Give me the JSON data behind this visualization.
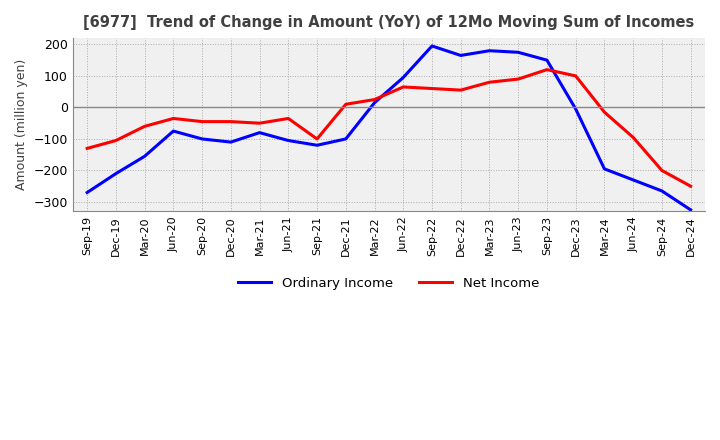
{
  "title": "[6977]  Trend of Change in Amount (YoY) of 12Mo Moving Sum of Incomes",
  "ylabel": "Amount (million yen)",
  "ylim": [
    -330,
    220
  ],
  "yticks": [
    -300,
    -200,
    -100,
    0,
    100,
    200
  ],
  "background_color": "#ffffff",
  "plot_bg_color": "#f0f0f0",
  "title_color": "#404040",
  "x_labels": [
    "Sep-19",
    "Dec-19",
    "Mar-20",
    "Jun-20",
    "Sep-20",
    "Dec-20",
    "Mar-21",
    "Jun-21",
    "Sep-21",
    "Dec-21",
    "Mar-22",
    "Jun-22",
    "Sep-22",
    "Dec-22",
    "Mar-23",
    "Jun-23",
    "Sep-23",
    "Dec-23",
    "Mar-24",
    "Jun-24",
    "Sep-24",
    "Dec-24"
  ],
  "ordinary_income": [
    -270,
    -210,
    -155,
    -75,
    -100,
    -110,
    -80,
    -105,
    -120,
    -100,
    15,
    95,
    195,
    165,
    180,
    175,
    150,
    -5,
    -195,
    -230,
    -265,
    -325
  ],
  "net_income": [
    -130,
    -105,
    -60,
    -35,
    -45,
    -45,
    -50,
    -35,
    -100,
    10,
    25,
    65,
    60,
    55,
    80,
    90,
    120,
    100,
    -15,
    -95,
    -200,
    -250
  ],
  "ordinary_color": "#0000ff",
  "net_color": "#ff0000",
  "line_width": 2.2
}
